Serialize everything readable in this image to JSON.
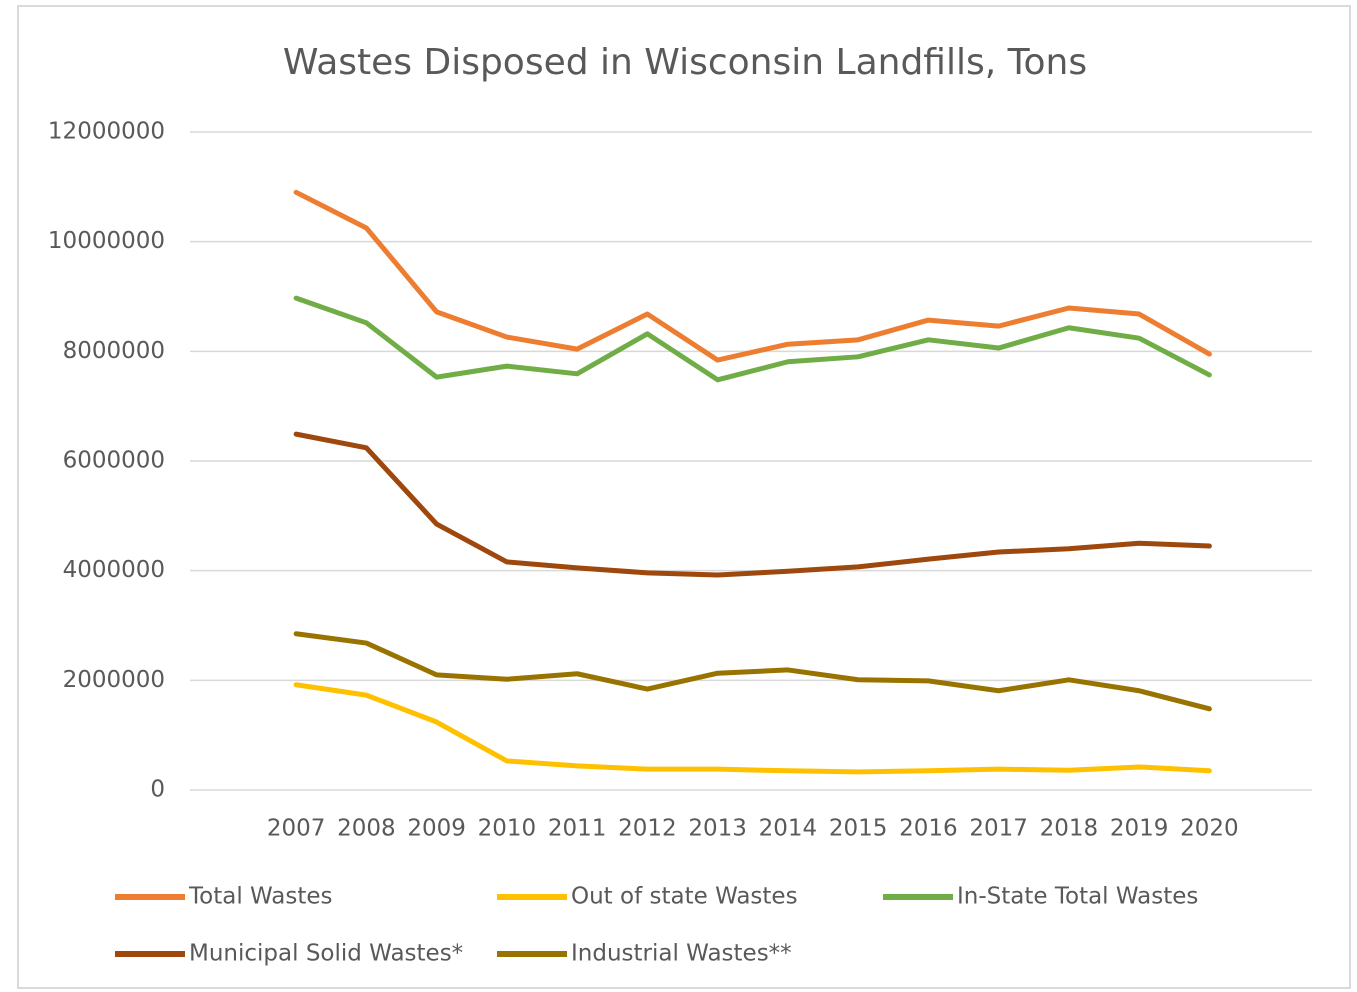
{
  "chart_data": {
    "type": "line",
    "title": "Wastes Disposed in Wisconsin Landfills, Tons",
    "categories": [
      "2007",
      "2008",
      "2009",
      "2010",
      "2011",
      "2012",
      "2013",
      "2014",
      "2015",
      "2016",
      "2017",
      "2018",
      "2019",
      "2020"
    ],
    "series": [
      {
        "name": "Total Wastes",
        "color": "#ed7d31",
        "values": [
          10900000,
          10250000,
          8720000,
          8260000,
          8040000,
          8680000,
          7840000,
          8130000,
          8210000,
          8570000,
          8460000,
          8790000,
          8680000,
          7950000
        ]
      },
      {
        "name": "Out of state Wastes",
        "color": "#ffc000",
        "values": [
          1920000,
          1730000,
          1240000,
          530000,
          440000,
          380000,
          380000,
          350000,
          330000,
          350000,
          380000,
          360000,
          420000,
          350000
        ]
      },
      {
        "name": "In-State Total Wastes",
        "color": "#70ad47",
        "values": [
          8970000,
          8520000,
          7530000,
          7730000,
          7590000,
          8320000,
          7480000,
          7810000,
          7900000,
          8210000,
          8060000,
          8430000,
          8240000,
          7570000
        ]
      },
      {
        "name": "Municipal Solid Wastes*",
        "color": "#9e480e",
        "values": [
          6490000,
          6240000,
          4850000,
          4160000,
          4050000,
          3960000,
          3920000,
          3990000,
          4070000,
          4210000,
          4340000,
          4400000,
          4500000,
          4450000
        ]
      },
      {
        "name": "Industrial Wastes**",
        "color": "#997300",
        "values": [
          2850000,
          2680000,
          2100000,
          2020000,
          2120000,
          1840000,
          2130000,
          2190000,
          2010000,
          1990000,
          1810000,
          2010000,
          1810000,
          1480000
        ]
      }
    ],
    "ylim": [
      0,
      12000000
    ],
    "yticks": [
      0,
      2000000,
      4000000,
      6000000,
      8000000,
      10000000,
      12000000
    ],
    "grid": true,
    "legend": "bottom"
  }
}
